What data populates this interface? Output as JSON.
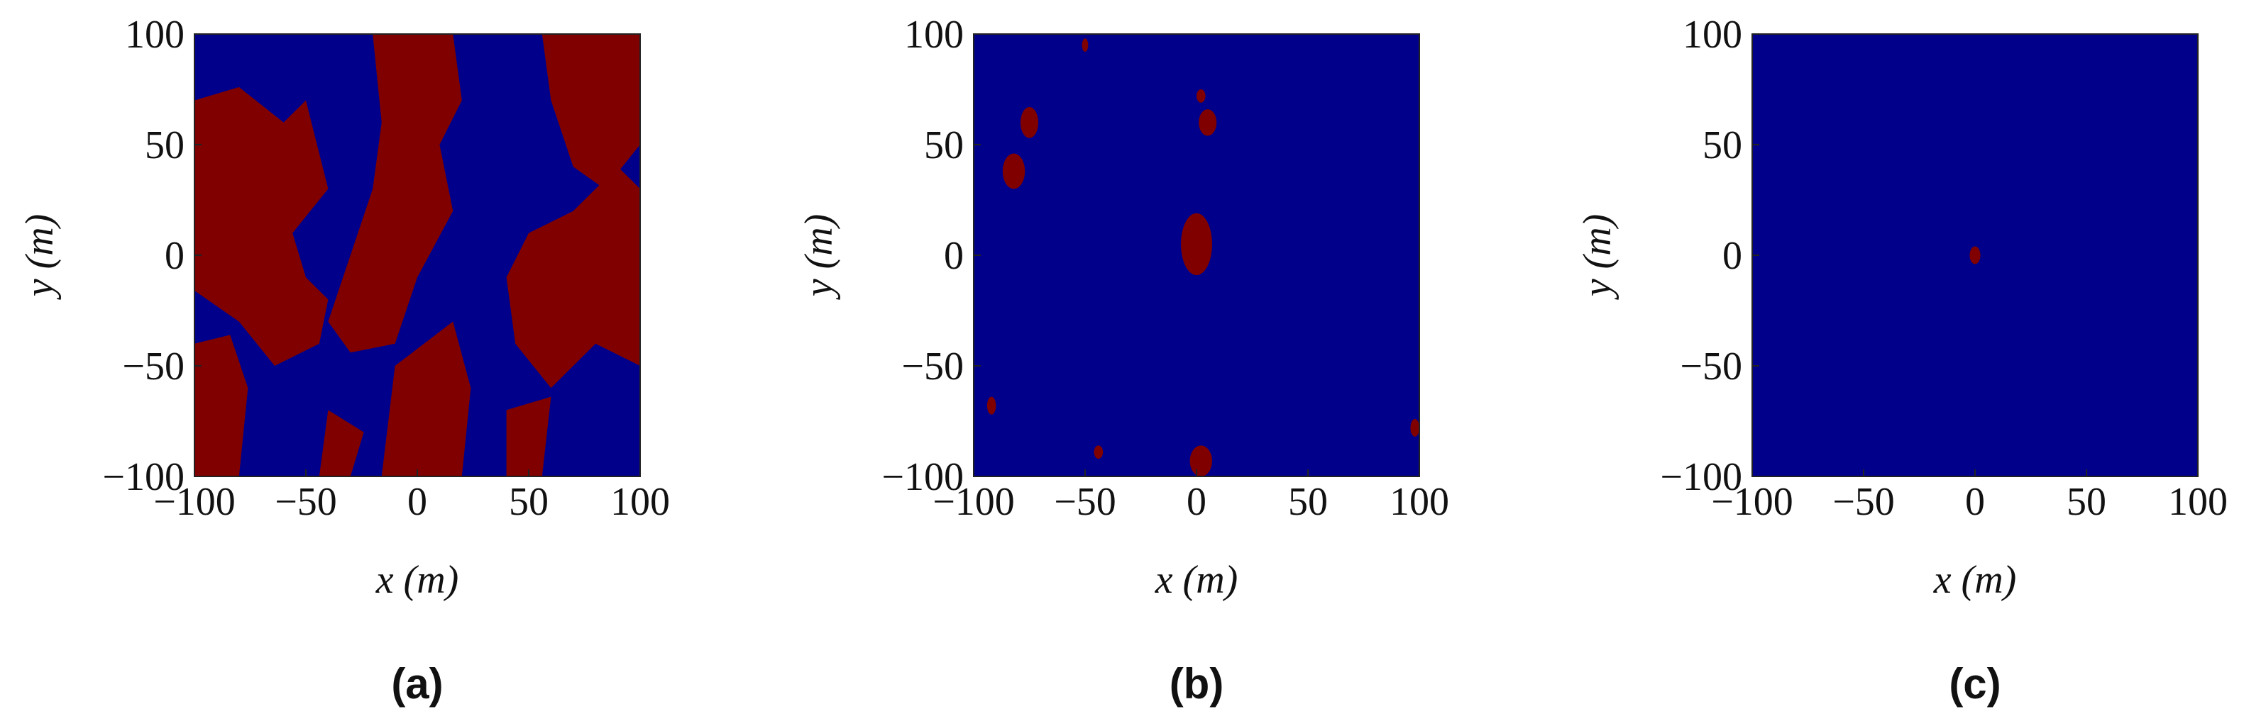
{
  "chart_data": [
    {
      "type": "heatmap",
      "panel_label": "(a)",
      "xlabel": "x (m)",
      "ylabel": "y (m)",
      "colors": [
        "#00008b",
        "#800000"
      ],
      "xlim": [
        -100,
        100
      ],
      "ylim": [
        -100,
        100
      ],
      "xticks": [
        {
          "value": -100,
          "label": "−100"
        },
        {
          "value": -50,
          "label": "−50"
        },
        0,
        50,
        100
      ],
      "yticks": [
        {
          "value": -100,
          "label": "−100"
        },
        {
          "value": -50,
          "label": "−50"
        },
        0,
        50,
        100
      ]
    },
    {
      "type": "heatmap",
      "panel_label": "(b)",
      "xlabel": "x (m)",
      "ylabel": "y (m)",
      "colors": [
        "#00008b",
        "#800000"
      ],
      "xlim": [
        -100,
        100
      ],
      "ylim": [
        -100,
        100
      ],
      "xticks": [
        {
          "value": -100,
          "label": "−100"
        },
        {
          "value": -50,
          "label": "−50"
        },
        0,
        50,
        100
      ],
      "yticks": [
        {
          "value": -100,
          "label": "−100"
        },
        {
          "value": -50,
          "label": "−50"
        },
        0,
        50,
        100
      ]
    },
    {
      "type": "heatmap",
      "panel_label": "(c)",
      "xlabel": "x (m)",
      "ylabel": "y (m)",
      "colors": [
        "#00008b",
        "#800000"
      ],
      "xlim": [
        -100,
        100
      ],
      "ylim": [
        -100,
        100
      ],
      "xticks": [
        {
          "value": -100,
          "label": "−100"
        },
        {
          "value": -50,
          "label": "−50"
        },
        0,
        50,
        100
      ],
      "yticks": [
        {
          "value": -100,
          "label": "−100"
        },
        {
          "value": -50,
          "label": "−50"
        },
        0,
        50,
        100
      ]
    }
  ]
}
